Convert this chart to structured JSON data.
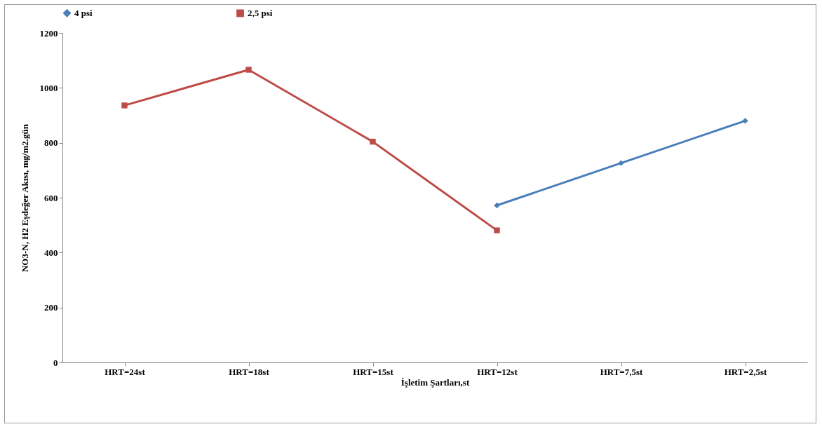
{
  "chart_data": {
    "type": "line",
    "xlabel": "İşletim Şartları,st",
    "ylabel": "NO3-N, H2 Eşdeğer Akısı, mg/m2.gün",
    "categories": [
      "HRT=24st",
      "HRT=18st",
      "HRT=15st",
      "HRT=12st",
      "HRT=7,5st",
      "HRT=2,5st"
    ],
    "series": [
      {
        "name": "4 psi",
        "color": "#4a7ebb",
        "marker": "diamond",
        "values": [
          null,
          null,
          null,
          572,
          726,
          880
        ]
      },
      {
        "name": "2,5 psi",
        "color": "#be4b48",
        "marker": "square",
        "values": [
          936,
          1066,
          804,
          481,
          null,
          null
        ]
      }
    ],
    "ylim": [
      0,
      1200
    ],
    "yticks": [
      0,
      200,
      400,
      600,
      800,
      1000,
      1200
    ],
    "grid": false,
    "legend": "top"
  }
}
